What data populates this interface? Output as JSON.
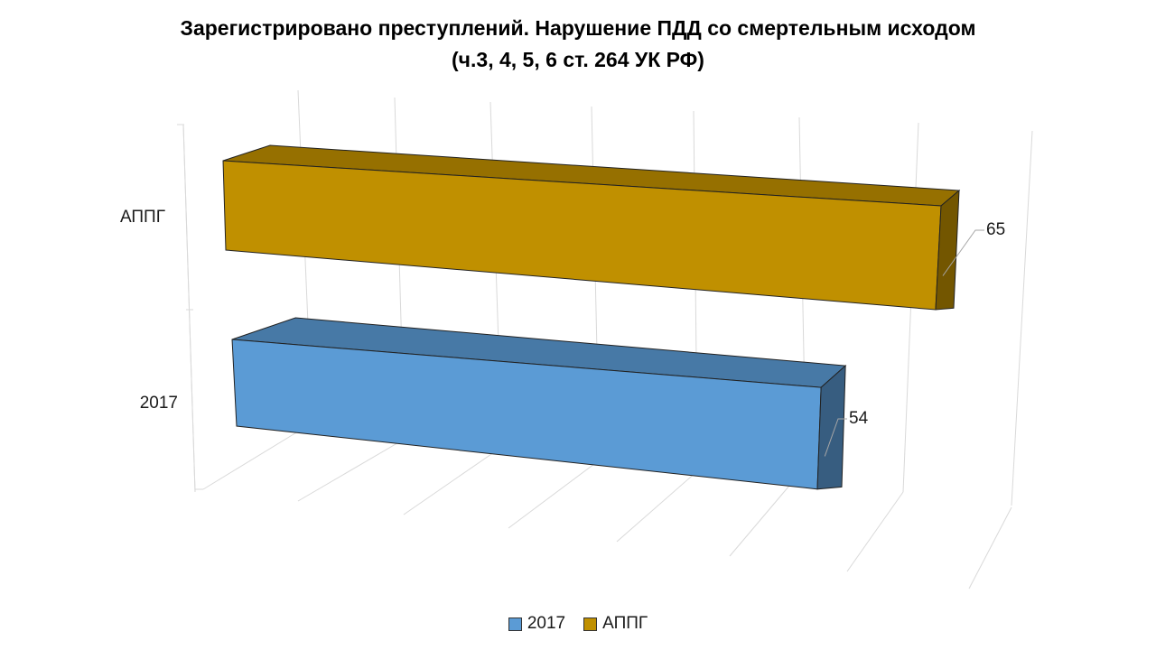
{
  "chart_data": {
    "type": "bar",
    "orientation": "horizontal",
    "style": "3d",
    "title": "Зарегистрировано  преступлений. Нарушение ПДД со смертельным исходом",
    "subtitle": "(ч.3, 4, 5, 6 ст. 264 УК РФ)",
    "categories": [
      "2017",
      "АППГ"
    ],
    "series": [
      {
        "name": "2017",
        "category": "2017",
        "value": 54,
        "color": "#5b9bd5"
      },
      {
        "name": "АППГ",
        "category": "АППГ",
        "value": 65,
        "color": "#c09000"
      }
    ],
    "legend_position": "bottom",
    "grid": true
  }
}
